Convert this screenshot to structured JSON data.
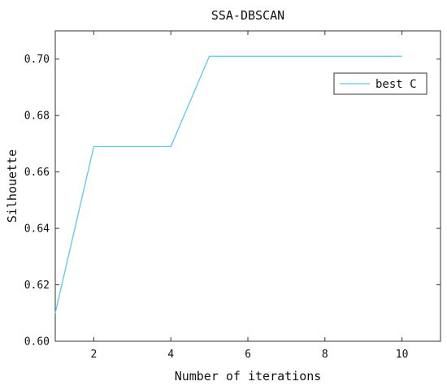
{
  "chart_data": {
    "type": "line",
    "title": "SSA-DBSCAN",
    "xlabel": "Number of iterations",
    "ylabel": "Silhouette",
    "xlim": [
      1,
      11
    ],
    "ylim": [
      0.6,
      0.71
    ],
    "xticks": [
      2,
      4,
      6,
      8,
      10
    ],
    "xtick_labels": [
      "2",
      "4",
      "6",
      "8",
      "10"
    ],
    "yticks": [
      0.6,
      0.62,
      0.64,
      0.66,
      0.68,
      0.7
    ],
    "ytick_labels": [
      "0.60",
      "0.62",
      "0.64",
      "0.66",
      "0.68",
      "0.70"
    ],
    "grid": false,
    "legend_position": "top-right",
    "series": [
      {
        "name": "best C",
        "color": "#5bc8ef",
        "x": [
          1,
          2,
          3,
          4,
          5,
          6,
          7,
          8,
          9,
          10
        ],
        "y": [
          0.61,
          0.669,
          0.669,
          0.669,
          0.701,
          0.701,
          0.701,
          0.701,
          0.701,
          0.701
        ]
      }
    ]
  }
}
